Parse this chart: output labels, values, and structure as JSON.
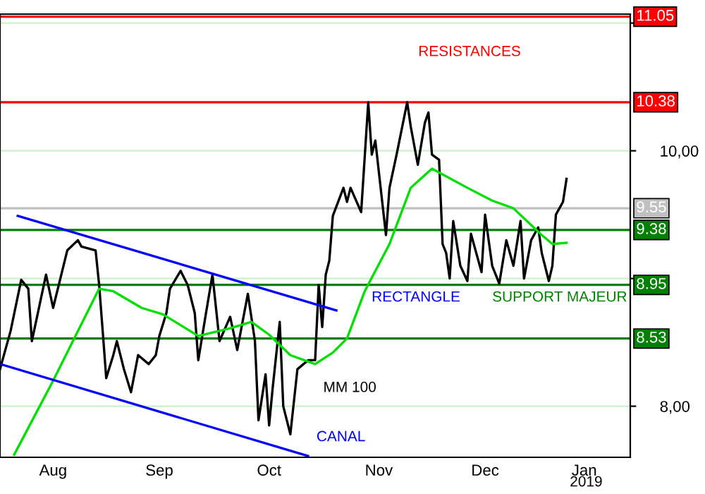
{
  "chart_data": {
    "type": "line",
    "x": [
      "2018-08-01",
      "2018-08-04",
      "2018-08-07",
      "2018-08-09",
      "2018-08-10",
      "2018-08-14",
      "2018-08-16",
      "2018-08-20",
      "2018-08-23",
      "2018-08-24",
      "2018-08-28",
      "2018-08-29",
      "2018-08-30",
      "2018-08-31",
      "2018-09-02",
      "2018-09-03",
      "2018-09-05",
      "2018-09-07",
      "2018-09-09",
      "2018-09-12",
      "2018-09-14",
      "2018-09-15",
      "2018-09-17",
      "2018-09-18",
      "2018-09-21",
      "2018-09-23",
      "2018-09-25",
      "2018-09-26",
      "2018-09-28",
      "2018-09-30",
      "2018-10-02",
      "2018-10-05",
      "2018-10-07",
      "2018-10-10",
      "2018-10-12",
      "2018-10-13",
      "2018-10-15",
      "2018-10-16",
      "2018-10-17",
      "2018-10-19",
      "2018-10-20",
      "2018-10-22",
      "2018-10-24",
      "2018-10-27",
      "2018-10-29",
      "2018-10-30",
      "2018-10-31",
      "2018-11-01",
      "2018-11-02",
      "2018-11-03",
      "2018-11-06",
      "2018-11-07",
      "2018-11-08",
      "2018-11-11",
      "2018-11-13",
      "2018-11-14",
      "2018-11-15",
      "2018-11-18",
      "2018-11-19",
      "2018-11-21",
      "2018-11-24",
      "2018-11-25",
      "2018-11-27",
      "2018-11-29",
      "2018-11-30",
      "2018-12-01",
      "2018-12-03",
      "2018-12-04",
      "2018-12-05",
      "2018-12-06",
      "2018-12-07",
      "2018-12-09",
      "2018-12-11",
      "2018-12-12",
      "2018-12-15",
      "2018-12-16",
      "2018-12-18",
      "2018-12-20",
      "2018-12-22",
      "2018-12-24",
      "2018-12-26",
      "2018-12-27",
      "2018-12-29",
      "2018-12-31",
      "2019-01-01",
      "2019-01-03",
      "2019-01-04",
      "2019-01-05",
      "2019-01-07",
      "2019-01-08"
    ],
    "series": [
      {
        "color": "#000000",
        "values": [
          8.29,
          8.59,
          8.99,
          8.92,
          8.51,
          9.03,
          8.77,
          9.22,
          9.3,
          9.25,
          9.22,
          8.95,
          8.59,
          8.22,
          8.4,
          8.51,
          8.29,
          8.11,
          8.4,
          8.33,
          8.4,
          8.55,
          8.73,
          8.92,
          9.06,
          8.95,
          8.73,
          8.36,
          8.7,
          9.03,
          8.51,
          8.7,
          8.44,
          8.88,
          8.51,
          7.89,
          8.25,
          7.85,
          8.14,
          8.66,
          8.0,
          7.78,
          8.29,
          8.36,
          8.36,
          8.95,
          8.62,
          9.03,
          9.14,
          9.49,
          9.71,
          9.6,
          9.71,
          9.52,
          10.38,
          9.97,
          10.08,
          9.34,
          9.71,
          9.97,
          10.38,
          10.19,
          9.89,
          10.22,
          10.3,
          9.97,
          9.93,
          9.27,
          9.2,
          9.0,
          9.45,
          9.1,
          8.98,
          9.35,
          9.05,
          9.5,
          9.1,
          8.96,
          9.3,
          9.1,
          9.45,
          9.0,
          9.3,
          9.4,
          9.2,
          8.98,
          9.1,
          9.5,
          9.6,
          9.78
        ]
      },
      {
        "color": "#00dd00",
        "x": [
          "2018-08-05",
          "2018-08-16",
          "2018-08-29",
          "2018-09-02",
          "2018-09-10",
          "2018-09-16",
          "2018-09-26",
          "2018-10-05",
          "2018-10-11",
          "2018-10-16",
          "2018-10-22",
          "2018-10-29",
          "2018-11-03",
          "2018-11-07",
          "2018-11-12",
          "2018-11-19",
          "2018-11-25",
          "2018-12-01",
          "2018-12-11",
          "2018-12-18",
          "2018-12-24",
          "2019-01-01",
          "2019-01-04",
          "2019-01-08"
        ],
        "values": [
          7.62,
          8.2,
          8.92,
          8.9,
          8.77,
          8.72,
          8.55,
          8.61,
          8.66,
          8.56,
          8.4,
          8.33,
          8.42,
          8.53,
          8.9,
          9.27,
          9.71,
          9.86,
          9.71,
          9.61,
          9.55,
          9.34,
          9.27,
          9.28
        ]
      },
      {
        "color": "#0000ff",
        "x": [
          "2018-08-06",
          "2018-11-04"
        ],
        "values": [
          9.49,
          8.75
        ]
      },
      {
        "color": "#0000ff",
        "x": [
          "2018-08-01",
          "2018-10-27"
        ],
        "values": [
          8.33,
          7.61
        ]
      }
    ],
    "xlim": [
      "2018-08-01",
      "2019-01-26"
    ],
    "xticks": [
      {
        "value": "2018-08-16",
        "label": "Aug"
      },
      {
        "value": "2018-09-15",
        "label": "Sep"
      },
      {
        "value": "2018-10-16",
        "label": "Oct"
      },
      {
        "value": "2018-11-16",
        "label": "Nov"
      },
      {
        "value": "2018-12-16",
        "label": "Dec"
      },
      {
        "value": "2019-01-13",
        "label": "Jan"
      }
    ],
    "ylim": [
      7.6,
      11.07
    ],
    "yticks": [
      {
        "value": 8,
        "label": "8,00"
      },
      {
        "value": 9,
        "label": null
      },
      {
        "value": 10,
        "label": "10,00"
      },
      {
        "value": 11,
        "label": null
      }
    ],
    "grid": "y",
    "ref_lines": [
      {
        "axis": "y",
        "value": 11.05,
        "label": "11.05",
        "color": "#ff0000"
      },
      {
        "axis": "y",
        "value": 10.38,
        "label": "10.38",
        "color": "#ff0000"
      },
      {
        "axis": "y",
        "value": 9.55,
        "label": "9.55",
        "color": "#c0c0c0"
      },
      {
        "axis": "y",
        "value": 9.38,
        "label": "9.38",
        "color": "#008000"
      },
      {
        "axis": "y",
        "value": 8.95,
        "label": "8.95",
        "color": "#008000"
      },
      {
        "axis": "y",
        "value": 8.53,
        "label": "8.53",
        "color": "#008000"
      }
    ],
    "annotations": [
      "RESISTANCES",
      "RECTANGLE",
      "SUPPORT MAJEUR",
      "MM 100",
      "CANAL",
      "2019"
    ]
  }
}
